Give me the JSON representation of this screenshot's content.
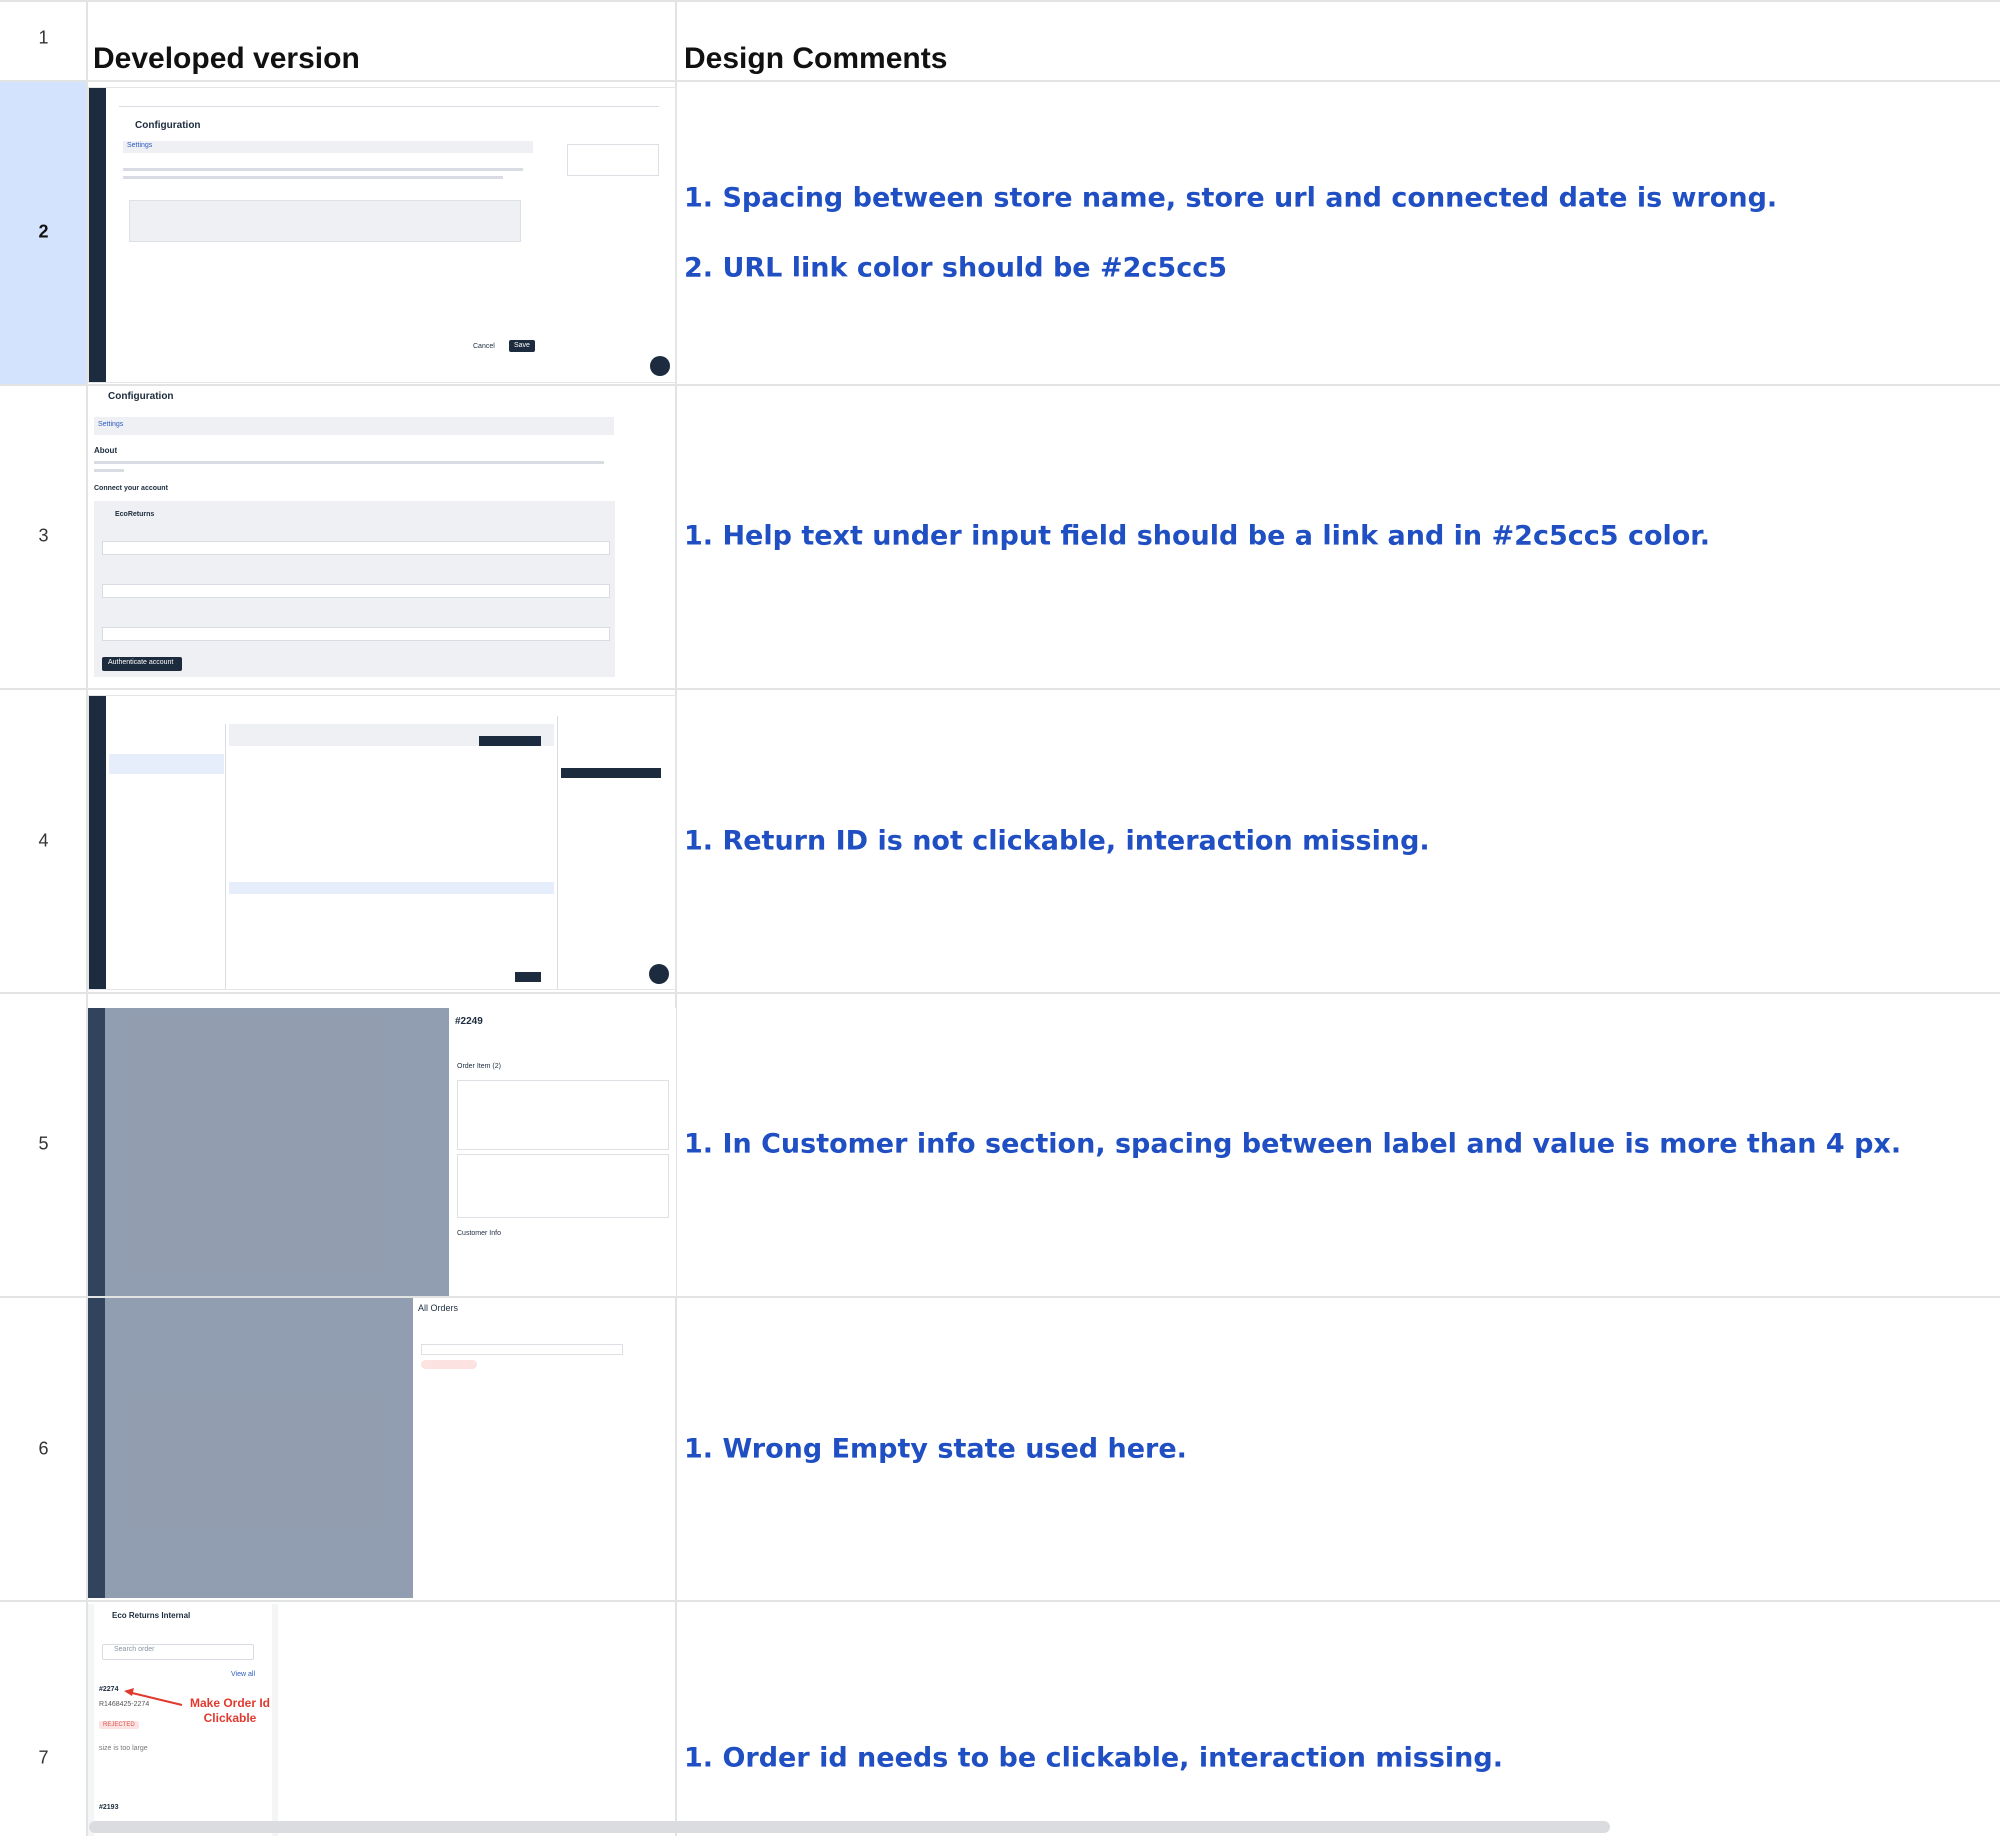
{
  "sheet": {
    "row_numbers": [
      "1",
      "2",
      "3",
      "4",
      "5",
      "6",
      "7"
    ],
    "headers": [
      "Developed version",
      "Design Comments"
    ],
    "rows": [
      {
        "comments": [
          "1. Spacing between store name, store url and connected date is wrong.",
          "2. URL link color should be #2c5cc5"
        ],
        "screenshot_texts": [
          "Configuration",
          "Settings",
          "Cancel",
          "Save"
        ]
      },
      {
        "comments": [
          "1. Help text under input field should be a link and in #2c5cc5 color."
        ],
        "screenshot_texts": [
          "Configuration",
          "Settings",
          "About",
          "Connect your account",
          "EcoReturns",
          "Authenticate account"
        ]
      },
      {
        "comments": [
          "1. Return ID is not clickable, interaction missing."
        ],
        "screenshot_texts": []
      },
      {
        "comments": [
          "1. In Customer info section, spacing between label and value is more than 4 px."
        ],
        "screenshot_texts": [
          "#2249",
          "Order Item (2)",
          "Customer Info"
        ]
      },
      {
        "comments": [
          "1. Wrong Empty state used here."
        ],
        "screenshot_texts": [
          "All Orders"
        ]
      },
      {
        "comments": [
          "1. Order id needs to be clickable, interaction missing."
        ],
        "screenshot_texts": [
          "Eco Returns Internal",
          "Search order",
          "View all",
          "#2274",
          "R1468425-2274",
          "REJECTED",
          "size is too large",
          "#2193",
          "Make Order Id Clickable"
        ]
      }
    ]
  }
}
